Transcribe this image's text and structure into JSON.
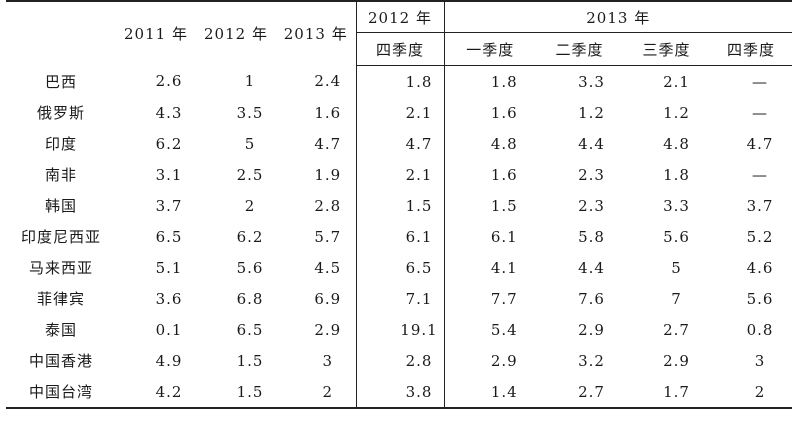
{
  "header": {
    "year_2011": "2011 年",
    "year_2012": "2012 年",
    "year_2013": "2013 年",
    "group_2012": "2012 年",
    "group_2013": "2013 年",
    "q4_2012": "四季度",
    "q1_2013": "一季度",
    "q2_2013": "二季度",
    "q3_2013": "三季度",
    "q4_2013": "四季度"
  },
  "rows": [
    {
      "country": "巴西",
      "values": [
        "2.6",
        "1",
        "2.4",
        "1.8",
        "1.8",
        "3.3",
        "2.1",
        "—"
      ]
    },
    {
      "country": "俄罗斯",
      "values": [
        "4.3",
        "3.5",
        "1.6",
        "2.1",
        "1.6",
        "1.2",
        "1.2",
        "—"
      ]
    },
    {
      "country": "印度",
      "values": [
        "6.2",
        "5",
        "4.7",
        "4.7",
        "4.8",
        "4.4",
        "4.8",
        "4.7"
      ]
    },
    {
      "country": "南非",
      "values": [
        "3.1",
        "2.5",
        "1.9",
        "2.1",
        "1.6",
        "2.3",
        "1.8",
        "—"
      ]
    },
    {
      "country": "韩国",
      "values": [
        "3.7",
        "2",
        "2.8",
        "1.5",
        "1.5",
        "2.3",
        "3.3",
        "3.7"
      ]
    },
    {
      "country": "印度尼西亚",
      "values": [
        "6.5",
        "6.2",
        "5.7",
        "6.1",
        "6.1",
        "5.8",
        "5.6",
        "5.2"
      ]
    },
    {
      "country": "马来西亚",
      "values": [
        "5.1",
        "5.6",
        "4.5",
        "6.5",
        "4.1",
        "4.4",
        "5",
        "4.6"
      ]
    },
    {
      "country": "菲律宾",
      "values": [
        "3.6",
        "6.8",
        "6.9",
        "7.1",
        "7.7",
        "7.6",
        "7",
        "5.6"
      ]
    },
    {
      "country": "泰国",
      "values": [
        "0.1",
        "6.5",
        "2.9",
        "19.1",
        "5.4",
        "2.9",
        "2.7",
        "0.8"
      ]
    },
    {
      "country": "中国香港",
      "values": [
        "4.9",
        "1.5",
        "3",
        "2.8",
        "2.9",
        "3.2",
        "2.9",
        "3"
      ]
    },
    {
      "country": "中国台湾",
      "values": [
        "4.2",
        "1.5",
        "2",
        "3.8",
        "1.4",
        "2.7",
        "1.7",
        "2"
      ]
    }
  ]
}
